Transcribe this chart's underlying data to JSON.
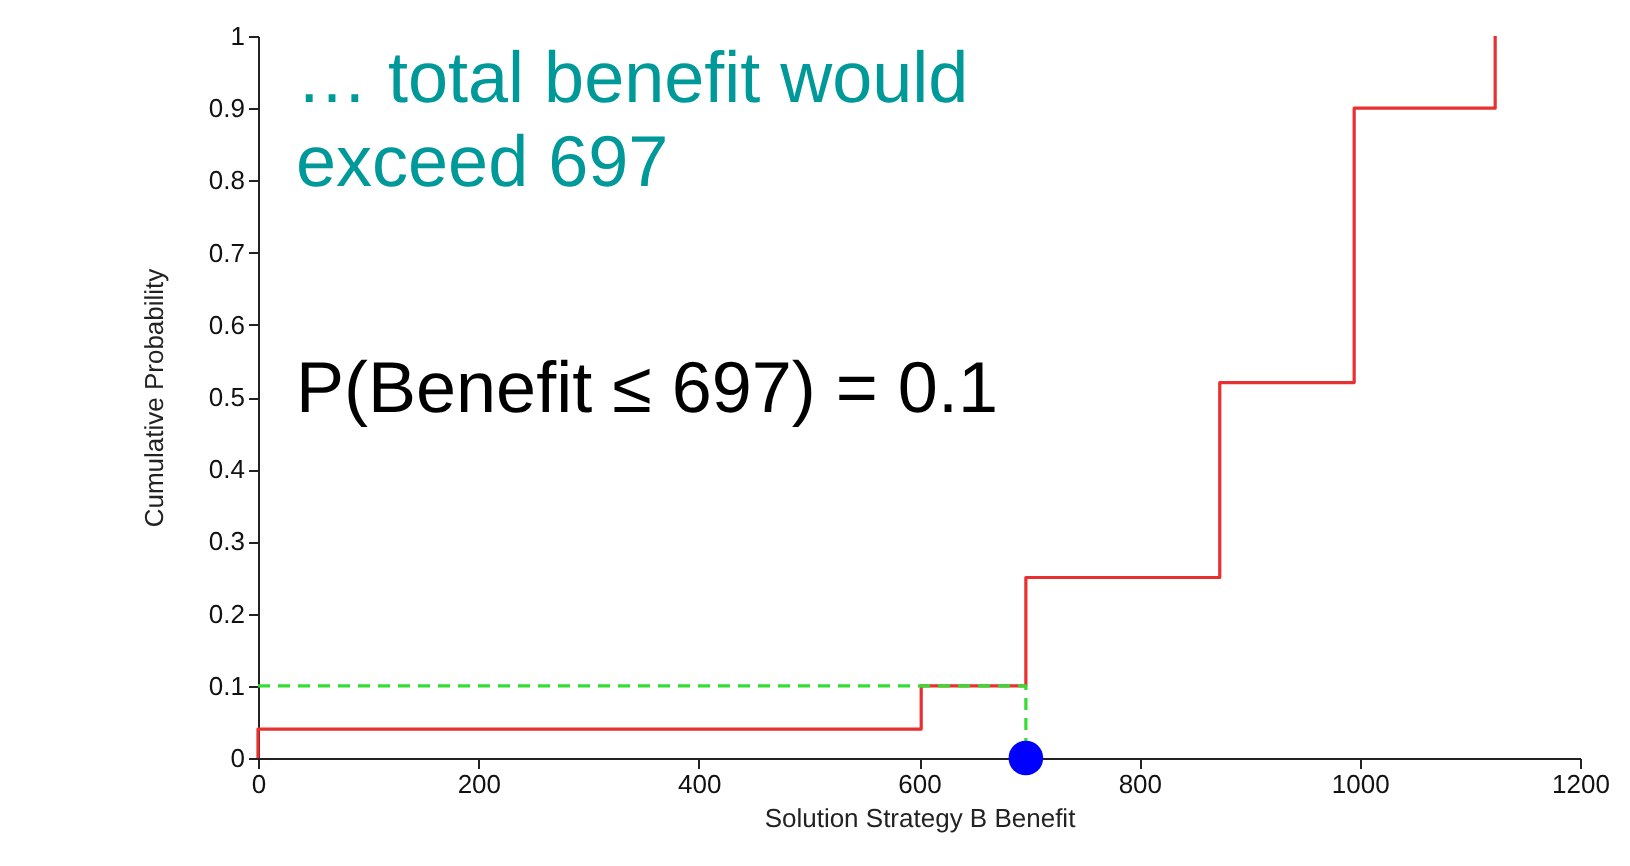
{
  "chart_data": {
    "type": "step",
    "xlabel": "Solution Strategy B Benefit",
    "ylabel": "Cumulative Probability",
    "xlim": [
      0,
      1200
    ],
    "xticks": [
      0,
      200,
      400,
      600,
      800,
      1000,
      1200
    ],
    "ylim": [
      0,
      1
    ],
    "yticks": [
      0,
      0.1,
      0.2,
      0.3,
      0.4,
      0.5,
      0.6,
      0.7,
      0.8,
      0.9,
      1
    ],
    "grid": false,
    "series": [
      {
        "color": "#e83030",
        "x": [
          0,
          0,
          602,
          697,
          873,
          995,
          1123
        ],
        "values": [
          0,
          0.04,
          0.1,
          0.25,
          0.52,
          0.9,
          1.0
        ]
      },
      {
        "type": "line",
        "color": "#33dd33",
        "line_style": "dashed",
        "x": [
          0,
          697,
          697
        ],
        "values": [
          0.1,
          0.1,
          0
        ]
      },
      {
        "type": "scatter",
        "color": "#0000ff",
        "marker": "circle",
        "x": [
          697
        ],
        "values": [
          0
        ]
      }
    ],
    "annotations": [
      "… total benefit would\nexceed 697",
      "P(Benefit ≤ 697) = 0.1"
    ]
  }
}
